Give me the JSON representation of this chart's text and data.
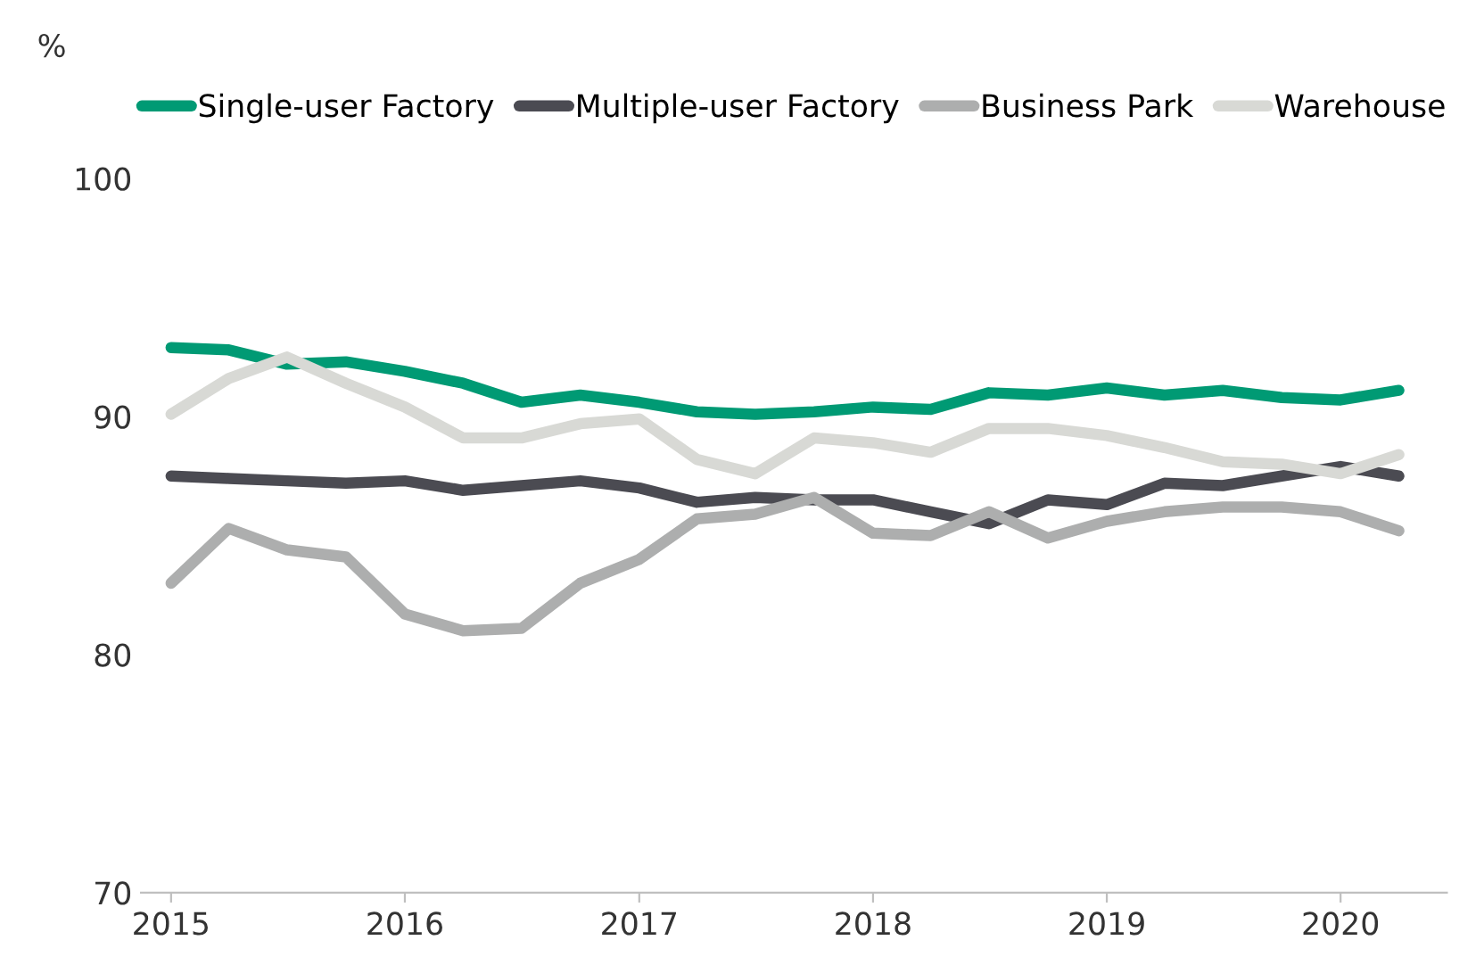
{
  "chart_data": {
    "type": "line",
    "ylabel": "%",
    "x": [
      "2015-01",
      "2015-04",
      "2015-07",
      "2015-10",
      "2016-01",
      "2016-04",
      "2016-07",
      "2016-10",
      "2017-01",
      "2017-04",
      "2017-07",
      "2017-10",
      "2018-01",
      "2018-04",
      "2018-07",
      "2018-10",
      "2019-01",
      "2019-04",
      "2019-07",
      "2019-10",
      "2020-01",
      "2020-04"
    ],
    "series": [
      {
        "name": "Single-user Factory",
        "color": "#009a74",
        "values": [
          92.9,
          92.8,
          92.2,
          92.3,
          91.9,
          91.4,
          90.6,
          90.9,
          90.6,
          90.2,
          90.1,
          90.2,
          90.4,
          90.3,
          91.0,
          90.9,
          91.2,
          90.9,
          91.1,
          90.8,
          90.7,
          91.1
        ]
      },
      {
        "name": "Multiple-user Factory",
        "color": "#4b4b52",
        "values": [
          87.5,
          87.4,
          87.3,
          87.2,
          87.3,
          86.9,
          87.1,
          87.3,
          87.0,
          86.4,
          86.6,
          86.5,
          86.5,
          86.0,
          85.5,
          86.5,
          86.3,
          87.2,
          87.1,
          87.5,
          87.9,
          87.5
        ]
      },
      {
        "name": "Business Park",
        "color": "#adaeae",
        "values": [
          83.0,
          85.3,
          84.4,
          84.1,
          81.7,
          81.0,
          81.1,
          83.0,
          84.0,
          85.7,
          85.9,
          86.6,
          85.1,
          85.0,
          86.0,
          84.9,
          85.6,
          86.0,
          86.2,
          86.2,
          86.0,
          85.2
        ]
      },
      {
        "name": "Warehouse",
        "color": "#d8d9d5",
        "values": [
          90.1,
          91.6,
          92.5,
          91.4,
          90.4,
          89.1,
          89.1,
          89.7,
          89.9,
          88.2,
          87.6,
          89.1,
          88.9,
          88.5,
          89.5,
          89.5,
          89.2,
          88.7,
          88.1,
          88.0,
          87.6,
          88.4
        ]
      }
    ],
    "xlim": [
      "2014-11-15",
      "2020-06-15"
    ],
    "xticks": [
      {
        "value": "2015-01",
        "label": "2015"
      },
      {
        "value": "2016-01",
        "label": "2016"
      },
      {
        "value": "2017-01",
        "label": "2017"
      },
      {
        "value": "2018-01",
        "label": "2018"
      },
      {
        "value": "2019-01",
        "label": "2019"
      },
      {
        "value": "2020-01",
        "label": "2020"
      }
    ],
    "ylim": [
      70,
      100
    ],
    "yticks": [
      70,
      80,
      90,
      100
    ],
    "grid": false,
    "legend": "top",
    "marker": "none",
    "line_style": "solid"
  }
}
